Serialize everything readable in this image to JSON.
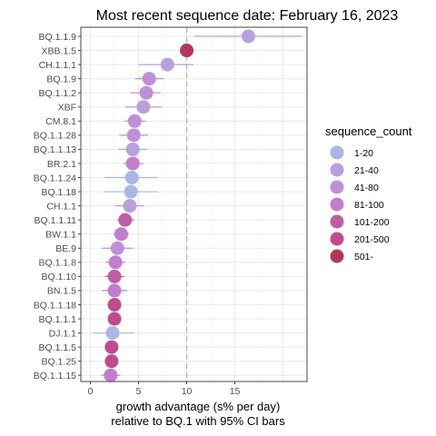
{
  "chart_data": {
    "type": "scatter",
    "title": "Most recent sequence date: February 16, 2023",
    "xlabel_line1": "growth advantage (s% per day)",
    "xlabel_line2": "relative to  BQ.1  with 95% CI bars",
    "xlim": [
      -1,
      22.5
    ],
    "xticks": [
      0,
      5,
      10,
      15
    ],
    "reference_line_x": 10,
    "grid": true,
    "legend": {
      "title": "sequence_count",
      "placement": "right",
      "entries": [
        {
          "label": "1-20",
          "color": "#a9b7e6"
        },
        {
          "label": "21-40",
          "color": "#b7a1dc"
        },
        {
          "label": "41-80",
          "color": "#bf8fd8"
        },
        {
          "label": "81-100",
          "color": "#c27dce"
        },
        {
          "label": "101-200",
          "color": "#c05ea3"
        },
        {
          "label": "201-500",
          "color": "#c04b8c"
        },
        {
          "label": "501-",
          "color": "#b43759"
        }
      ]
    },
    "points": [
      {
        "lineage": "BQ.1.1.9",
        "value": 16.4,
        "lo": 10.8,
        "hi": 22.0,
        "bin": 1
      },
      {
        "lineage": "XBB.1.5",
        "value": 10.0,
        "lo": 9.7,
        "hi": 10.3,
        "bin": 6
      },
      {
        "lineage": "CH.1.1.1",
        "value": 8.0,
        "lo": 5.0,
        "hi": 10.7,
        "bin": 1
      },
      {
        "lineage": "BQ.1.9",
        "value": 6.1,
        "lo": 4.6,
        "hi": 7.6,
        "bin": 2
      },
      {
        "lineage": "BQ.1.1.2",
        "value": 5.8,
        "lo": 4.2,
        "hi": 7.3,
        "bin": 2
      },
      {
        "lineage": "XBF",
        "value": 5.5,
        "lo": 3.6,
        "hi": 7.4,
        "bin": 1
      },
      {
        "lineage": "CM.8.1",
        "value": 4.6,
        "lo": 3.5,
        "hi": 5.8,
        "bin": 2
      },
      {
        "lineage": "BQ.1.1.28",
        "value": 4.5,
        "lo": 3.0,
        "hi": 6.0,
        "bin": 2
      },
      {
        "lineage": "BQ.1.1.13",
        "value": 4.4,
        "lo": 2.9,
        "hi": 5.9,
        "bin": 1
      },
      {
        "lineage": "BR.2.1",
        "value": 4.4,
        "lo": 3.4,
        "hi": 5.5,
        "bin": 3
      },
      {
        "lineage": "BQ.1.1.24",
        "value": 4.3,
        "lo": 1.5,
        "hi": 7.0,
        "bin": 0
      },
      {
        "lineage": "BQ.1.18",
        "value": 4.2,
        "lo": 1.4,
        "hi": 7.0,
        "bin": 0
      },
      {
        "lineage": "CH.1.1",
        "value": 4.1,
        "lo": 2.6,
        "hi": 5.6,
        "bin": 1
      },
      {
        "lineage": "BQ.1.1.11",
        "value": 3.6,
        "lo": 2.8,
        "hi": 4.5,
        "bin": 4
      },
      {
        "lineage": "BW.1.1",
        "value": 3.2,
        "lo": 2.4,
        "hi": 4.0,
        "bin": 3
      },
      {
        "lineage": "BE.9",
        "value": 2.8,
        "lo": 1.2,
        "hi": 4.4,
        "bin": 2
      },
      {
        "lineage": "BQ.1.1.8",
        "value": 2.6,
        "lo": 1.6,
        "hi": 3.6,
        "bin": 3
      },
      {
        "lineage": "BQ.1.10",
        "value": 2.5,
        "lo": 1.5,
        "hi": 3.5,
        "bin": 4
      },
      {
        "lineage": "BN.1.5",
        "value": 2.5,
        "lo": 1.2,
        "hi": 3.8,
        "bin": 3
      },
      {
        "lineage": "BQ.1.1.18",
        "value": 2.5,
        "lo": 1.8,
        "hi": 3.2,
        "bin": 5
      },
      {
        "lineage": "BQ.1.1.1",
        "value": 2.5,
        "lo": 2.0,
        "hi": 3.0,
        "bin": 5
      },
      {
        "lineage": "DJ.1.1",
        "value": 2.3,
        "lo": 0.2,
        "hi": 4.5,
        "bin": 0
      },
      {
        "lineage": "BQ.1.1.5",
        "value": 2.2,
        "lo": 1.7,
        "hi": 2.7,
        "bin": 5
      },
      {
        "lineage": "BQ.1.25",
        "value": 2.2,
        "lo": 1.8,
        "hi": 2.6,
        "bin": 5
      },
      {
        "lineage": "BQ.1.1.15",
        "value": 2.1,
        "lo": 1.1,
        "hi": 3.1,
        "bin": 3
      }
    ]
  }
}
